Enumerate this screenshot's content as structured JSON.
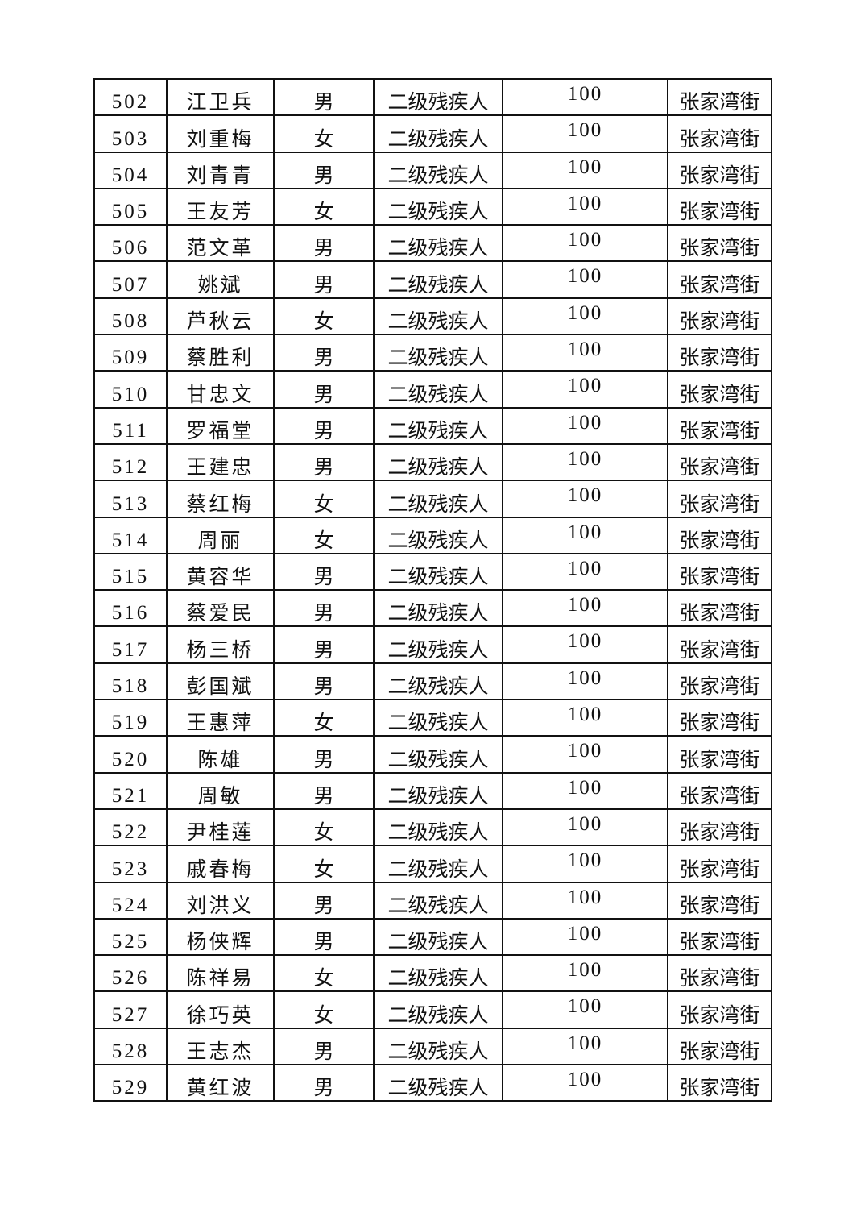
{
  "table": {
    "rows": [
      {
        "no": "502",
        "name": "江卫兵",
        "gender": "男",
        "category": "二级残疾人",
        "amount": "100",
        "street": "张家湾街"
      },
      {
        "no": "503",
        "name": "刘重梅",
        "gender": "女",
        "category": "二级残疾人",
        "amount": "100",
        "street": "张家湾街"
      },
      {
        "no": "504",
        "name": "刘青青",
        "gender": "男",
        "category": "二级残疾人",
        "amount": "100",
        "street": "张家湾街"
      },
      {
        "no": "505",
        "name": "王友芳",
        "gender": "女",
        "category": "二级残疾人",
        "amount": "100",
        "street": "张家湾街"
      },
      {
        "no": "506",
        "name": "范文革",
        "gender": "男",
        "category": "二级残疾人",
        "amount": "100",
        "street": "张家湾街"
      },
      {
        "no": "507",
        "name": "姚斌",
        "gender": "男",
        "category": "二级残疾人",
        "amount": "100",
        "street": "张家湾街"
      },
      {
        "no": "508",
        "name": "芦秋云",
        "gender": "女",
        "category": "二级残疾人",
        "amount": "100",
        "street": "张家湾街"
      },
      {
        "no": "509",
        "name": "蔡胜利",
        "gender": "男",
        "category": "二级残疾人",
        "amount": "100",
        "street": "张家湾街"
      },
      {
        "no": "510",
        "name": "甘忠文",
        "gender": "男",
        "category": "二级残疾人",
        "amount": "100",
        "street": "张家湾街"
      },
      {
        "no": "511",
        "name": "罗福堂",
        "gender": "男",
        "category": "二级残疾人",
        "amount": "100",
        "street": "张家湾街"
      },
      {
        "no": "512",
        "name": "王建忠",
        "gender": "男",
        "category": "二级残疾人",
        "amount": "100",
        "street": "张家湾街"
      },
      {
        "no": "513",
        "name": "蔡红梅",
        "gender": "女",
        "category": "二级残疾人",
        "amount": "100",
        "street": "张家湾街"
      },
      {
        "no": "514",
        "name": "周丽",
        "gender": "女",
        "category": "二级残疾人",
        "amount": "100",
        "street": "张家湾街"
      },
      {
        "no": "515",
        "name": "黄容华",
        "gender": "男",
        "category": "二级残疾人",
        "amount": "100",
        "street": "张家湾街"
      },
      {
        "no": "516",
        "name": "蔡爱民",
        "gender": "男",
        "category": "二级残疾人",
        "amount": "100",
        "street": "张家湾街"
      },
      {
        "no": "517",
        "name": "杨三桥",
        "gender": "男",
        "category": "二级残疾人",
        "amount": "100",
        "street": "张家湾街"
      },
      {
        "no": "518",
        "name": "彭国斌",
        "gender": "男",
        "category": "二级残疾人",
        "amount": "100",
        "street": "张家湾街"
      },
      {
        "no": "519",
        "name": "王惠萍",
        "gender": "女",
        "category": "二级残疾人",
        "amount": "100",
        "street": "张家湾街"
      },
      {
        "no": "520",
        "name": "陈雄",
        "gender": "男",
        "category": "二级残疾人",
        "amount": "100",
        "street": "张家湾街"
      },
      {
        "no": "521",
        "name": "周敏",
        "gender": "男",
        "category": "二级残疾人",
        "amount": "100",
        "street": "张家湾街"
      },
      {
        "no": "522",
        "name": "尹桂莲",
        "gender": "女",
        "category": "二级残疾人",
        "amount": "100",
        "street": "张家湾街"
      },
      {
        "no": "523",
        "name": "戚春梅",
        "gender": "女",
        "category": "二级残疾人",
        "amount": "100",
        "street": "张家湾街"
      },
      {
        "no": "524",
        "name": "刘洪义",
        "gender": "男",
        "category": "二级残疾人",
        "amount": "100",
        "street": "张家湾街"
      },
      {
        "no": "525",
        "name": "杨侠辉",
        "gender": "男",
        "category": "二级残疾人",
        "amount": "100",
        "street": "张家湾街"
      },
      {
        "no": "526",
        "name": "陈祥易",
        "gender": "女",
        "category": "二级残疾人",
        "amount": "100",
        "street": "张家湾街"
      },
      {
        "no": "527",
        "name": "徐巧英",
        "gender": "女",
        "category": "二级残疾人",
        "amount": "100",
        "street": "张家湾街"
      },
      {
        "no": "528",
        "name": "王志杰",
        "gender": "男",
        "category": "二级残疾人",
        "amount": "100",
        "street": "张家湾街"
      },
      {
        "no": "529",
        "name": "黄红波",
        "gender": "男",
        "category": "二级残疾人",
        "amount": "100",
        "street": "张家湾街"
      }
    ]
  }
}
